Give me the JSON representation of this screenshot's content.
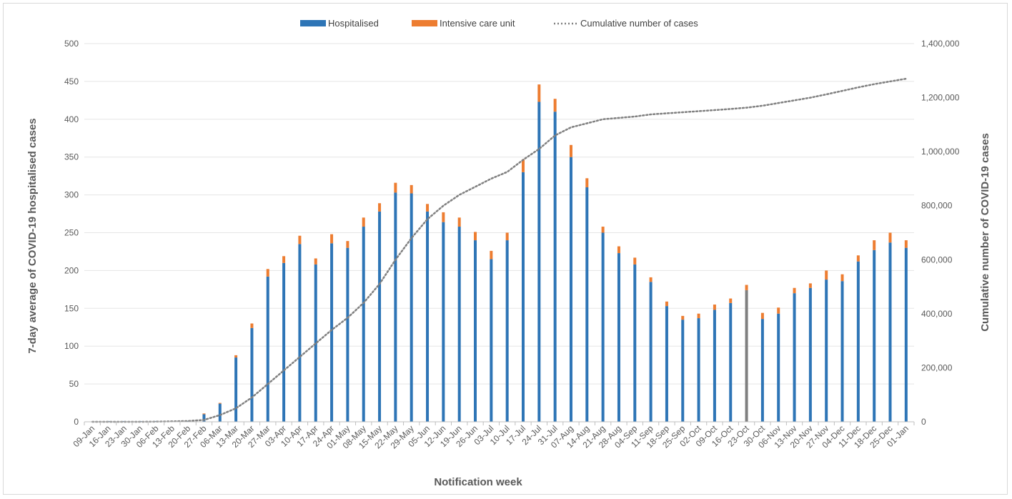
{
  "chart_data": {
    "type": "bar",
    "title": "",
    "xlabel": "Notification week",
    "ylabel": "7-day average of COVID-19 hospitalised cases",
    "y2label": "Cumulative number of COVID-19 cases",
    "ylim": [
      0,
      500
    ],
    "y2lim": [
      0,
      1400000
    ],
    "yticks": [
      0,
      50,
      100,
      150,
      200,
      250,
      300,
      350,
      400,
      450,
      500
    ],
    "y2ticks": [
      "0",
      "200,000",
      "400,000",
      "600,000",
      "800,000",
      "1,000,000",
      "1,200,000",
      "1,400,000"
    ],
    "y2tick_values": [
      0,
      200000,
      400000,
      600000,
      800000,
      1000000,
      1200000,
      1400000
    ],
    "grid": true,
    "legend_position": "top-center",
    "colors": {
      "hospitalised": "#2e75b6",
      "icu": "#ed7d31",
      "cumulative": "#808080",
      "highlight": "#7f7f7f",
      "grid": "#e5e5e5",
      "axis": "#bfbfbf"
    },
    "categories": [
      "09-Jan",
      "16-Jan",
      "23-Jan",
      "30-Jan",
      "06-Feb",
      "13-Feb",
      "20-Feb",
      "27-Feb",
      "06-Mar",
      "13-Mar",
      "20-Mar",
      "27-Mar",
      "03-Apr",
      "10-Apr",
      "17-Apr",
      "24-Apr",
      "01-May",
      "08-May",
      "15-May",
      "22-May",
      "29-May",
      "05-Jun",
      "12-Jun",
      "19-Jun",
      "26-Jun",
      "03-Jul",
      "10-Jul",
      "17-Jul",
      "24-Jul",
      "31-Jul",
      "07-Aug",
      "14-Aug",
      "21-Aug",
      "28-Aug",
      "04-Sep",
      "11-Sep",
      "18-Sep",
      "25-Sep",
      "02-Oct",
      "09-Oct",
      "16-Oct",
      "23-Oct",
      "30-Oct",
      "06-Nov",
      "13-Nov",
      "20-Nov",
      "27-Nov",
      "04-Dec",
      "11-Dec",
      "18-Dec",
      "25-Dec",
      "01-Jan"
    ],
    "highlight_category": "23-Oct",
    "series": [
      {
        "name": "Hospitalised",
        "type": "bar",
        "values": [
          0,
          1,
          1,
          1,
          1,
          0,
          1,
          10,
          24,
          85,
          124,
          192,
          210,
          235,
          208,
          236,
          230,
          258,
          278,
          303,
          302,
          278,
          264,
          258,
          240,
          215,
          240,
          330,
          423,
          410,
          350,
          310,
          250,
          223,
          208,
          185,
          153,
          135,
          137,
          148,
          157,
          174,
          136,
          143,
          170,
          177,
          188,
          186,
          212,
          227,
          237,
          230
        ]
      },
      {
        "name": "Intensive care unit",
        "type": "bar",
        "values": [
          0,
          0,
          0,
          0,
          0,
          0,
          0,
          1,
          1,
          3,
          6,
          10,
          9,
          11,
          8,
          12,
          9,
          12,
          11,
          13,
          11,
          10,
          13,
          12,
          11,
          11,
          10,
          17,
          23,
          17,
          16,
          12,
          8,
          9,
          9,
          6,
          6,
          5,
          6,
          7,
          6,
          7,
          8,
          8,
          7,
          6,
          12,
          9,
          8,
          13,
          13,
          10
        ]
      },
      {
        "name": "Cumulative number of cases",
        "type": "line",
        "style": "dotted",
        "values": [
          0,
          0,
          0,
          100,
          500,
          1500,
          3000,
          7000,
          25000,
          50000,
          90000,
          140000,
          190000,
          240000,
          290000,
          340000,
          385000,
          440000,
          510000,
          600000,
          680000,
          750000,
          800000,
          840000,
          870000,
          900000,
          925000,
          970000,
          1010000,
          1060000,
          1090000,
          1105000,
          1120000,
          1125000,
          1130000,
          1138000,
          1142000,
          1146000,
          1150000,
          1154000,
          1158000,
          1163000,
          1170000,
          1180000,
          1190000,
          1200000,
          1212000,
          1225000,
          1238000,
          1250000,
          1260000,
          1270000
        ]
      }
    ]
  }
}
